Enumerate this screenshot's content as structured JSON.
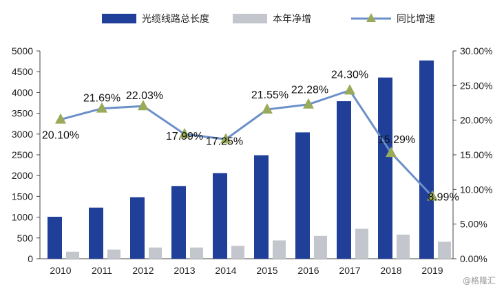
{
  "chart_data": {
    "type": "bar",
    "categories": [
      "2010",
      "2011",
      "2012",
      "2013",
      "2014",
      "2015",
      "2016",
      "2017",
      "2018",
      "2019"
    ],
    "series": [
      {
        "name": "光缆线路总长度",
        "kind": "bar",
        "axis": "left",
        "color": "#1f3f99",
        "values": [
          1010,
          1230,
          1480,
          1750,
          2060,
          2490,
          3040,
          3790,
          4360,
          4770
        ]
      },
      {
        "name": "本年净增",
        "kind": "bar",
        "axis": "left",
        "color": "#c3c6cc",
        "values": [
          170,
          220,
          270,
          270,
          310,
          440,
          550,
          720,
          580,
          410
        ]
      },
      {
        "name": "同比增速",
        "kind": "line",
        "axis": "right",
        "color": "#6b8fc8",
        "marker_color": "#9aaa5b",
        "values": [
          20.1,
          21.69,
          22.03,
          17.99,
          17.25,
          21.55,
          22.28,
          24.3,
          15.29,
          8.99
        ],
        "labels": [
          "20.10%",
          "21.69%",
          "22.03%",
          "17.99%",
          "17.25%",
          "21.55%",
          "22.28%",
          "24.30%",
          "15.29%",
          "8.99%"
        ]
      }
    ],
    "left_axis": {
      "ylim": [
        0,
        5000
      ],
      "ticks": [
        0,
        500,
        1000,
        1500,
        2000,
        2500,
        3000,
        3500,
        4000,
        4500,
        5000
      ],
      "tick_labels": [
        "0",
        "500",
        "1000",
        "1500",
        "2000",
        "2500",
        "3000",
        "3500",
        "4000",
        "4500",
        "5000"
      ]
    },
    "right_axis": {
      "ylim": [
        0,
        30
      ],
      "ticks": [
        0,
        5,
        10,
        15,
        20,
        25,
        30
      ],
      "tick_labels": [
        "0.00%",
        "5.00%",
        "10.00%",
        "15.00%",
        "20.00%",
        "25.00%",
        "30.00%"
      ]
    },
    "legend_position": "top",
    "grid": false
  },
  "legend": {
    "bar1": "光缆线路总长度",
    "bar2": "本年净增",
    "line": "同比增速"
  },
  "watermark": "@格隆汇"
}
